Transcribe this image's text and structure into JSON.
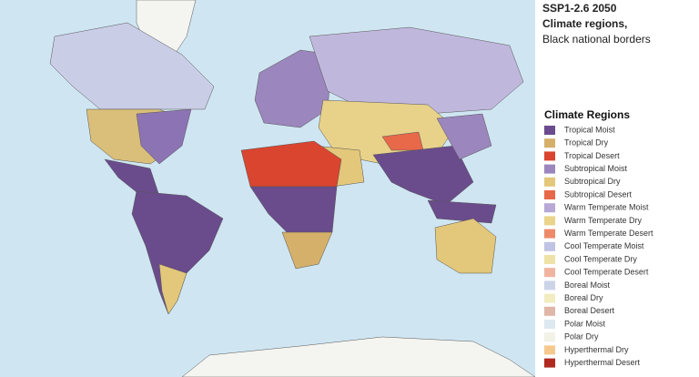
{
  "title": {
    "line1": "SSP1-2.6  2050",
    "line2": "Climate regions,",
    "line3": "Black national borders"
  },
  "legend": {
    "title": "Climate Regions",
    "items": [
      {
        "label": "Tropical Moist",
        "color": "#6a4c8c"
      },
      {
        "label": "Tropical Dry",
        "color": "#d4b06a"
      },
      {
        "label": "Tropical Desert",
        "color": "#d9452f"
      },
      {
        "label": "Subtropical Moist",
        "color": "#9b86bd"
      },
      {
        "label": "Subtropical Dry",
        "color": "#e3c77a"
      },
      {
        "label": "Subtropical Desert",
        "color": "#e8684a"
      },
      {
        "label": "Warm Temperate Moist",
        "color": "#b7a8d6"
      },
      {
        "label": "Warm Temperate Dry",
        "color": "#ead48a"
      },
      {
        "label": "Warm Temperate Desert",
        "color": "#ee8a6a"
      },
      {
        "label": "Cool Temperate Moist",
        "color": "#c0c3e2"
      },
      {
        "label": "Cool Temperate Dry",
        "color": "#efe2a6"
      },
      {
        "label": "Cool Temperate Desert",
        "color": "#f0b4a0"
      },
      {
        "label": "Boreal Moist",
        "color": "#ccd4e8"
      },
      {
        "label": "Boreal Dry",
        "color": "#f2ecc0"
      },
      {
        "label": "Boreal Desert",
        "color": "#e0b6a8"
      },
      {
        "label": "Polar Moist",
        "color": "#dde8f0"
      },
      {
        "label": "Polar Dry",
        "color": "#f2f2e6"
      },
      {
        "label": "Hyperthermal Dry",
        "color": "#f6c98e"
      },
      {
        "label": "Hyperthermal Desert",
        "color": "#b02a20"
      }
    ]
  }
}
